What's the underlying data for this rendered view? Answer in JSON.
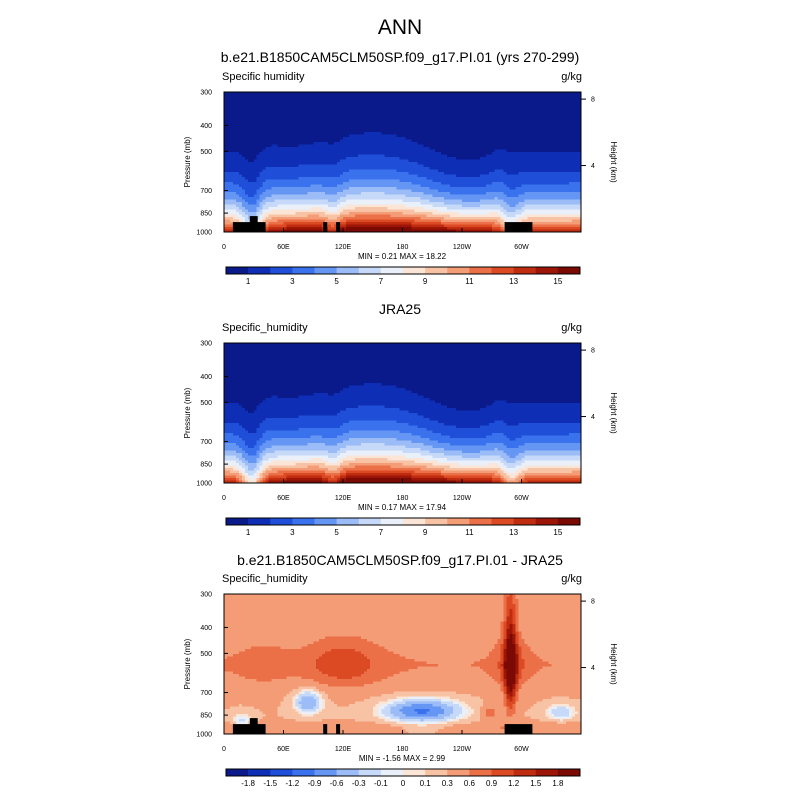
{
  "page_title": "ANN",
  "chart_data": [
    {
      "type": "heatmap",
      "subtype": "pressure-longitude contour (filled)",
      "title": "b.e21.B1850CAM5CLM50SP.f09_g17.PI.01 (yrs 270-299)",
      "left_label": "Specific humidity",
      "right_label": "g/kg",
      "ylabel": "Pressure (mb)",
      "y2label": "Height (km)",
      "y_ticks": [
        "300",
        "400",
        "500",
        "700",
        "850",
        "1000"
      ],
      "y_range": [
        300,
        1000
      ],
      "y2_ticks": [
        "8",
        "4"
      ],
      "x_ticks": [
        "0",
        "60E",
        "120E",
        "180",
        "120W",
        "60W"
      ],
      "x_range": [
        0,
        360
      ],
      "stats": "MIN =   0.21  MAX =  18.22",
      "min": 0.21,
      "max": 18.22,
      "colorbar_labels": [
        "1",
        "3",
        "5",
        "7",
        "9",
        "11",
        "13",
        "15"
      ],
      "colorbar_colors": [
        "#0a1a8a",
        "#0e2fb5",
        "#1f4fd8",
        "#3a72ee",
        "#6596f4",
        "#9bbcf6",
        "#c6d9f8",
        "#eaf0fa",
        "#fbe5d6",
        "#f8c3a5",
        "#f39c76",
        "#eb7048",
        "#dc4a24",
        "#bf2c10",
        "#9c1507",
        "#7a0a03"
      ],
      "contour_levels": [
        1,
        2,
        3,
        4,
        5,
        6,
        7,
        8,
        9,
        10,
        11,
        12,
        13,
        14,
        15
      ],
      "masked": true
    },
    {
      "type": "heatmap",
      "subtype": "pressure-longitude contour (filled)",
      "title": "JRA25",
      "left_label": "Specific_humidity",
      "right_label": "g/kg",
      "ylabel": "Pressure (mb)",
      "y2label": "Height (km)",
      "y_ticks": [
        "300",
        "400",
        "500",
        "700",
        "850",
        "1000"
      ],
      "y_range": [
        300,
        1000
      ],
      "y2_ticks": [
        "8",
        "4"
      ],
      "x_ticks": [
        "0",
        "60E",
        "120E",
        "180",
        "120W",
        "60W"
      ],
      "x_range": [
        0,
        360
      ],
      "stats": "MIN =   0.17  MAX =  17.94",
      "min": 0.17,
      "max": 17.94,
      "colorbar_labels": [
        "1",
        "3",
        "5",
        "7",
        "9",
        "11",
        "13",
        "15"
      ],
      "colorbar_colors": [
        "#0a1a8a",
        "#0e2fb5",
        "#1f4fd8",
        "#3a72ee",
        "#6596f4",
        "#9bbcf6",
        "#c6d9f8",
        "#eaf0fa",
        "#fbe5d6",
        "#f8c3a5",
        "#f39c76",
        "#eb7048",
        "#dc4a24",
        "#bf2c10",
        "#9c1507",
        "#7a0a03"
      ],
      "contour_levels": [
        1,
        2,
        3,
        4,
        5,
        6,
        7,
        8,
        9,
        10,
        11,
        12,
        13,
        14,
        15
      ],
      "masked": false
    },
    {
      "type": "heatmap",
      "subtype": "pressure-longitude contour (filled, difference)",
      "title": "b.e21.B1850CAM5CLM50SP.f09_g17.PI.01 - JRA25",
      "left_label": "Specific_humidity",
      "right_label": "g/kg",
      "ylabel": "Pressure (mb)",
      "y2label": "Height (km)",
      "y_ticks": [
        "300",
        "400",
        "500",
        "700",
        "850",
        "1000"
      ],
      "y_range": [
        300,
        1000
      ],
      "y2_ticks": [
        "8",
        "4"
      ],
      "x_ticks": [
        "0",
        "60E",
        "120E",
        "180",
        "120W",
        "60W"
      ],
      "x_range": [
        0,
        360
      ],
      "stats": "MIN =  -1.56  MAX =   2.99",
      "min": -1.56,
      "max": 2.99,
      "colorbar_labels": [
        "-1.8",
        "-1.5",
        "-1.2",
        "-0.9",
        "-0.6",
        "-0.3",
        "-0.1",
        "0",
        "0.1",
        "0.3",
        "0.6",
        "0.9",
        "1.2",
        "1.5",
        "1.8"
      ],
      "colorbar_colors": [
        "#0a1a8a",
        "#0e2fb5",
        "#1f4fd8",
        "#3a72ee",
        "#6596f4",
        "#9bbcf6",
        "#c6d9f8",
        "#eaf0fa",
        "#fbe5d6",
        "#f8c3a5",
        "#f39c76",
        "#eb7048",
        "#dc4a24",
        "#bf2c10",
        "#9c1507",
        "#7a0a03"
      ],
      "contour_levels": [
        -1.8,
        -1.5,
        -1.2,
        -0.9,
        -0.6,
        -0.3,
        -0.1,
        0,
        0.1,
        0.3,
        0.6,
        0.9,
        1.2,
        1.5,
        1.8
      ],
      "masked": true
    }
  ]
}
